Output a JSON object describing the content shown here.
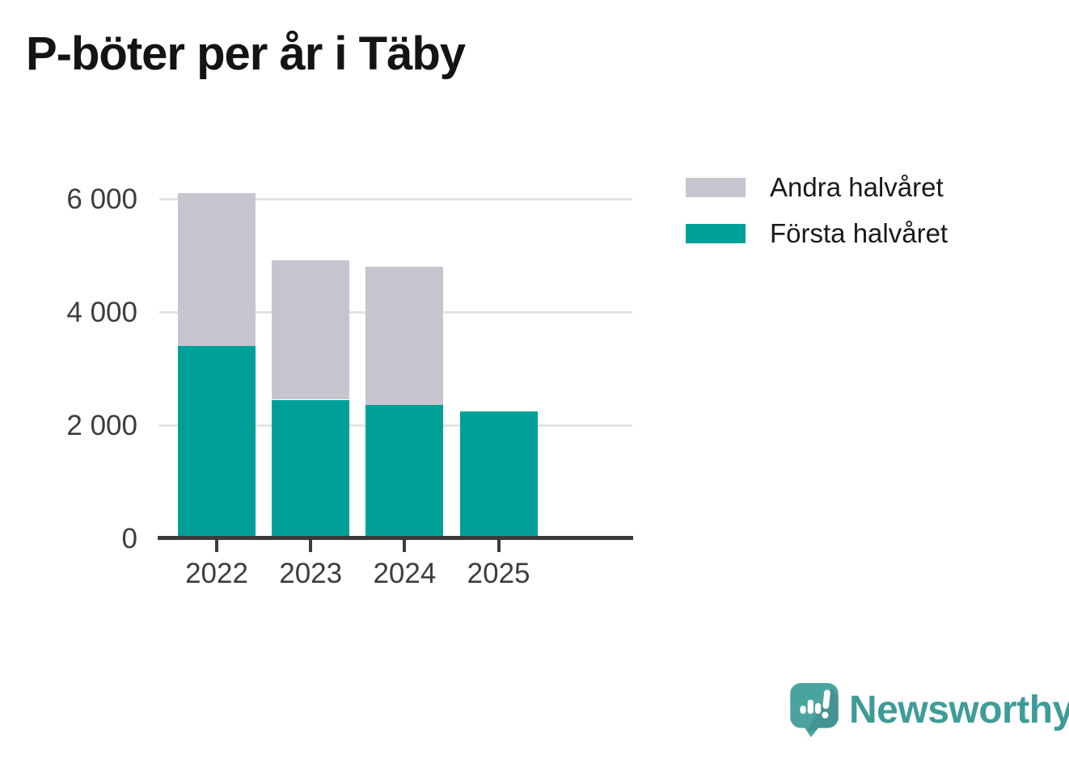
{
  "title": "P-böter per år i Täby",
  "background_color": "#ffffff",
  "chart_data": {
    "type": "bar",
    "stacked": true,
    "title": "P-böter per år i Täby",
    "xlabel": "",
    "ylabel": "",
    "categories": [
      "2022",
      "2023",
      "2024",
      "2025"
    ],
    "series": [
      {
        "name": "Första halvåret",
        "color": "#00a098",
        "values": [
          3400,
          2450,
          2360,
          2240
        ]
      },
      {
        "name": "Andra halvåret",
        "color": "#c7c4cf",
        "values": [
          2700,
          2460,
          2440,
          0
        ]
      }
    ],
    "totals": [
      6100,
      4910,
      4800,
      2240
    ],
    "ylim": [
      0,
      6400
    ],
    "yticks": {
      "values": [
        0,
        2000,
        4000,
        6000
      ],
      "labels": [
        "0",
        "2 000",
        "4 000",
        "6 000"
      ]
    },
    "grid": true,
    "grid_color": "#e4e4e4",
    "axis_color": "#3b3b3b",
    "tick_label_color": "#3d3d3d",
    "legend_position": "top-right"
  },
  "branding": {
    "name": "Newsworthy",
    "text_color": "#3f9c98",
    "bubble_color": "#4ba3a0",
    "bubble_shade": "#37817f",
    "mark_color": "#ffffff"
  }
}
